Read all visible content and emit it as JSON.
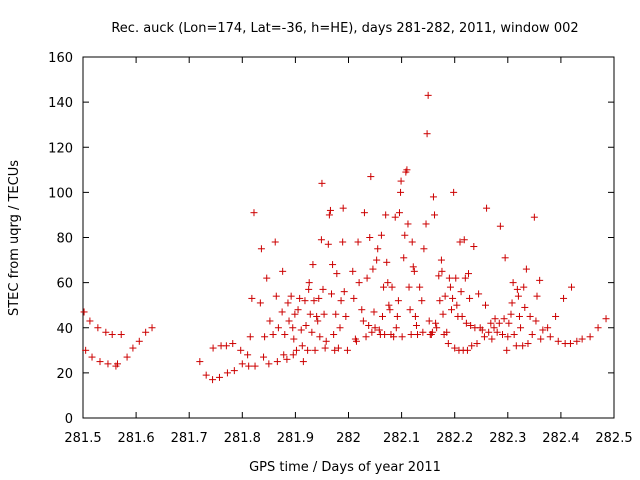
{
  "chart_data": {
    "type": "scatter",
    "title": "Rec. auck (Lon=174, Lat=-36, h=HE), days 281-282, 2011, window 002",
    "xlabel": "GPS time / Days of year 2011",
    "ylabel": "STEC from uqrg / TECUs",
    "xlim": [
      281.5,
      282.5
    ],
    "ylim": [
      0,
      160
    ],
    "xticks": [
      281.5,
      281.6,
      281.7,
      281.8,
      281.9,
      282,
      282.1,
      282.2,
      282.3,
      282.4,
      282.5
    ],
    "yticks": [
      0,
      20,
      40,
      60,
      80,
      100,
      120,
      140,
      160
    ],
    "xtick_labels": [
      "281.5",
      "281.6",
      "281.7",
      "281.8",
      "281.9",
      "282",
      "282.1",
      "282.2",
      "282.3",
      "282.4",
      "282.5"
    ],
    "ytick_labels": [
      "0",
      "20",
      "40",
      "60",
      "80",
      "100",
      "120",
      "140",
      "160"
    ],
    "grid": false,
    "marker": "+",
    "color": "#cc0000",
    "series": [
      {
        "points": [
          [
            281.502,
            47
          ],
          [
            281.505,
            30
          ],
          [
            281.513,
            43
          ],
          [
            281.517,
            27
          ],
          [
            281.528,
            40
          ],
          [
            281.532,
            25
          ],
          [
            281.543,
            38
          ],
          [
            281.547,
            24
          ],
          [
            281.555,
            37
          ],
          [
            281.562,
            23
          ],
          [
            281.572,
            37
          ],
          [
            281.565,
            24
          ],
          [
            281.583,
            27
          ],
          [
            281.594,
            31
          ],
          [
            281.606,
            34
          ],
          [
            281.618,
            38
          ],
          [
            281.63,
            40
          ],
          [
            281.72,
            25
          ],
          [
            281.732,
            19
          ],
          [
            281.744,
            17
          ],
          [
            281.745,
            31
          ],
          [
            281.757,
            18
          ],
          [
            281.76,
            32
          ],
          [
            281.77,
            32
          ],
          [
            281.772,
            20
          ],
          [
            281.782,
            33
          ],
          [
            281.785,
            21
          ],
          [
            281.797,
            30
          ],
          [
            281.8,
            24
          ],
          [
            281.81,
            28
          ],
          [
            281.812,
            23
          ],
          [
            281.815,
            36
          ],
          [
            281.818,
            53
          ],
          [
            281.822,
            91
          ],
          [
            281.824,
            23
          ],
          [
            281.834,
            51
          ],
          [
            281.836,
            75
          ],
          [
            281.84,
            27
          ],
          [
            281.842,
            36
          ],
          [
            281.846,
            62
          ],
          [
            281.85,
            24
          ],
          [
            281.852,
            43
          ],
          [
            281.858,
            37
          ],
          [
            281.862,
            78
          ],
          [
            281.864,
            54
          ],
          [
            281.866,
            25
          ],
          [
            281.868,
            40
          ],
          [
            281.875,
            47
          ],
          [
            281.876,
            65
          ],
          [
            281.878,
            28
          ],
          [
            281.88,
            37
          ],
          [
            281.884,
            26
          ],
          [
            281.886,
            51
          ],
          [
            281.888,
            43
          ],
          [
            281.892,
            54
          ],
          [
            281.895,
            40
          ],
          [
            281.896,
            28
          ],
          [
            281.897,
            35
          ],
          [
            281.899,
            46
          ],
          [
            281.902,
            30
          ],
          [
            281.905,
            48
          ],
          [
            281.908,
            53
          ],
          [
            281.911,
            39
          ],
          [
            281.913,
            32
          ],
          [
            281.915,
            25
          ],
          [
            281.918,
            52
          ],
          [
            281.92,
            41
          ],
          [
            281.923,
            30
          ],
          [
            281.925,
            57
          ],
          [
            281.926,
            60
          ],
          [
            281.928,
            46
          ],
          [
            281.931,
            38
          ],
          [
            281.933,
            68
          ],
          [
            281.935,
            52
          ],
          [
            281.937,
            30
          ],
          [
            281.94,
            45
          ],
          [
            281.942,
            43
          ],
          [
            281.944,
            53
          ],
          [
            281.946,
            36
          ],
          [
            281.949,
            79
          ],
          [
            281.95,
            104
          ],
          [
            281.952,
            57
          ],
          [
            281.954,
            46
          ],
          [
            281.956,
            31
          ],
          [
            281.958,
            34
          ],
          [
            281.962,
            77
          ],
          [
            281.964,
            90
          ],
          [
            281.966,
            92
          ],
          [
            281.968,
            55
          ],
          [
            281.97,
            68
          ],
          [
            281.972,
            37
          ],
          [
            281.974,
            30
          ],
          [
            281.976,
            46
          ],
          [
            281.978,
            64
          ],
          [
            281.981,
            31
          ],
          [
            281.984,
            40
          ],
          [
            281.986,
            52
          ],
          [
            281.989,
            78
          ],
          [
            281.99,
            93
          ],
          [
            281.992,
            56
          ],
          [
            281.995,
            45
          ],
          [
            281.998,
            30
          ],
          [
            282.008,
            65
          ],
          [
            282.01,
            53
          ],
          [
            282.013,
            35
          ],
          [
            282.015,
            34
          ],
          [
            282.018,
            78
          ],
          [
            282.02,
            60
          ],
          [
            282.025,
            48
          ],
          [
            282.028,
            43
          ],
          [
            282.03,
            91
          ],
          [
            282.033,
            36
          ],
          [
            282.035,
            62
          ],
          [
            282.038,
            41
          ],
          [
            282.04,
            80
          ],
          [
            282.042,
            107
          ],
          [
            282.044,
            38
          ],
          [
            282.046,
            66
          ],
          [
            282.048,
            47
          ],
          [
            282.05,
            40
          ],
          [
            282.053,
            70
          ],
          [
            282.055,
            75
          ],
          [
            282.058,
            39
          ],
          [
            282.06,
            37
          ],
          [
            282.062,
            81
          ],
          [
            282.064,
            45
          ],
          [
            282.066,
            58
          ],
          [
            282.068,
            37
          ],
          [
            282.07,
            90
          ],
          [
            282.072,
            69
          ],
          [
            282.074,
            60
          ],
          [
            282.076,
            50
          ],
          [
            282.078,
            48
          ],
          [
            282.08,
            37
          ],
          [
            282.082,
            58
          ],
          [
            282.085,
            36
          ],
          [
            282.088,
            89
          ],
          [
            282.09,
            40
          ],
          [
            282.092,
            45
          ],
          [
            282.094,
            52
          ],
          [
            282.096,
            91
          ],
          [
            282.098,
            100
          ],
          [
            282.099,
            105
          ],
          [
            282.101,
            36
          ],
          [
            282.104,
            71
          ],
          [
            282.106,
            81
          ],
          [
            282.108,
            109
          ],
          [
            282.11,
            110
          ],
          [
            282.112,
            86
          ],
          [
            282.114,
            58
          ],
          [
            282.116,
            48
          ],
          [
            282.118,
            37
          ],
          [
            282.12,
            78
          ],
          [
            282.122,
            67
          ],
          [
            282.124,
            65
          ],
          [
            282.126,
            45
          ],
          [
            282.128,
            41
          ],
          [
            282.13,
            37
          ],
          [
            282.134,
            58
          ],
          [
            282.138,
            52
          ],
          [
            282.14,
            38
          ],
          [
            282.142,
            75
          ],
          [
            282.146,
            86
          ],
          [
            282.148,
            126
          ],
          [
            282.15,
            143
          ],
          [
            282.152,
            43
          ],
          [
            282.154,
            37
          ],
          [
            282.156,
            37
          ],
          [
            282.158,
            38
          ],
          [
            282.16,
            98
          ],
          [
            282.162,
            90
          ],
          [
            282.164,
            42
          ],
          [
            282.166,
            40
          ],
          [
            282.17,
            63
          ],
          [
            282.172,
            52
          ],
          [
            282.175,
            70
          ],
          [
            282.176,
            65
          ],
          [
            282.178,
            46
          ],
          [
            282.18,
            37
          ],
          [
            282.182,
            54
          ],
          [
            282.185,
            38
          ],
          [
            282.188,
            33
          ],
          [
            282.19,
            62
          ],
          [
            282.192,
            58
          ],
          [
            282.194,
            48
          ],
          [
            282.196,
            53
          ],
          [
            282.198,
            100
          ],
          [
            282.2,
            31
          ],
          [
            282.202,
            62
          ],
          [
            282.204,
            50
          ],
          [
            282.206,
            45
          ],
          [
            282.208,
            30
          ],
          [
            282.21,
            78
          ],
          [
            282.212,
            56
          ],
          [
            282.214,
            45
          ],
          [
            282.216,
            30
          ],
          [
            282.218,
            79
          ],
          [
            282.22,
            62
          ],
          [
            282.222,
            42
          ],
          [
            282.224,
            30
          ],
          [
            282.226,
            64
          ],
          [
            282.228,
            53
          ],
          [
            282.23,
            41
          ],
          [
            282.232,
            32
          ],
          [
            282.236,
            76
          ],
          [
            282.238,
            40
          ],
          [
            282.242,
            33
          ],
          [
            282.245,
            55
          ],
          [
            282.248,
            40
          ],
          [
            282.252,
            39
          ],
          [
            282.256,
            36
          ],
          [
            282.258,
            50
          ],
          [
            282.26,
            93
          ],
          [
            282.264,
            38
          ],
          [
            282.268,
            42
          ],
          [
            282.27,
            35
          ],
          [
            282.274,
            40
          ],
          [
            282.276,
            44
          ],
          [
            282.28,
            38
          ],
          [
            282.284,
            42
          ],
          [
            282.286,
            85
          ],
          [
            282.29,
            37
          ],
          [
            282.293,
            44
          ],
          [
            282.295,
            71
          ],
          [
            282.298,
            30
          ],
          [
            282.3,
            36
          ],
          [
            282.302,
            42
          ],
          [
            282.306,
            46
          ],
          [
            282.308,
            51
          ],
          [
            282.31,
            60
          ],
          [
            282.312,
            37
          ],
          [
            282.316,
            32
          ],
          [
            282.318,
            57
          ],
          [
            282.32,
            54
          ],
          [
            282.322,
            45
          ],
          [
            282.324,
            40
          ],
          [
            282.328,
            32
          ],
          [
            282.33,
            58
          ],
          [
            282.332,
            49
          ],
          [
            282.335,
            66
          ],
          [
            282.338,
            33
          ],
          [
            282.342,
            45
          ],
          [
            282.346,
            37
          ],
          [
            282.35,
            89
          ],
          [
            282.353,
            43
          ],
          [
            282.355,
            54
          ],
          [
            282.36,
            61
          ],
          [
            282.362,
            35
          ],
          [
            282.366,
            39
          ],
          [
            282.375,
            40
          ],
          [
            282.38,
            36
          ],
          [
            282.39,
            45
          ],
          [
            282.395,
            34
          ],
          [
            282.405,
            53
          ],
          [
            282.408,
            33
          ],
          [
            282.418,
            33
          ],
          [
            282.42,
            58
          ],
          [
            282.43,
            34
          ],
          [
            282.44,
            35
          ],
          [
            282.455,
            36
          ],
          [
            282.47,
            40
          ],
          [
            282.485,
            44
          ]
        ]
      }
    ]
  }
}
